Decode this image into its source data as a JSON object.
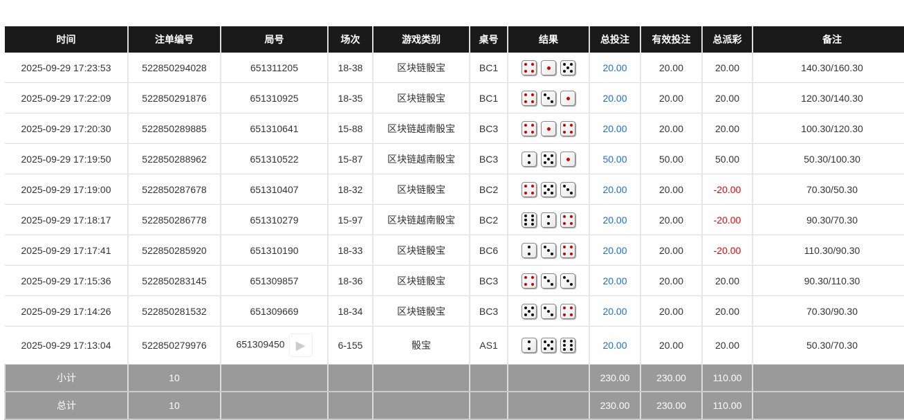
{
  "headers": [
    "时间",
    "注单编号",
    "局号",
    "场次",
    "游戏类别",
    "桌号",
    "结果",
    "总投注",
    "有效投注",
    "总派彩",
    "备注"
  ],
  "rows": [
    {
      "time": "2025-09-29 17:23:53",
      "bet_id": "522850294028",
      "round": "651311205",
      "session": "18-38",
      "game": "区块链骰宝",
      "table": "BC1",
      "dice": [
        4,
        1,
        5
      ],
      "total_bet": "20.00",
      "valid_bet": "20.00",
      "payout": "20.00",
      "note": "140.30/160.30"
    },
    {
      "time": "2025-09-29 17:22:09",
      "bet_id": "522850291876",
      "round": "651310925",
      "session": "18-35",
      "game": "区块链骰宝",
      "table": "BC1",
      "dice": [
        4,
        3,
        1
      ],
      "total_bet": "20.00",
      "valid_bet": "20.00",
      "payout": "20.00",
      "note": "120.30/140.30"
    },
    {
      "time": "2025-09-29 17:20:30",
      "bet_id": "522850289885",
      "round": "651310641",
      "session": "15-88",
      "game": "区块链越南骰宝",
      "table": "BC3",
      "dice": [
        4,
        1,
        4
      ],
      "total_bet": "20.00",
      "valid_bet": "20.00",
      "payout": "20.00",
      "note": "100.30/120.30"
    },
    {
      "time": "2025-09-29 17:19:50",
      "bet_id": "522850288962",
      "round": "651310522",
      "session": "15-87",
      "game": "区块链越南骰宝",
      "table": "BC3",
      "dice": [
        2,
        5,
        1
      ],
      "total_bet": "50.00",
      "valid_bet": "50.00",
      "payout": "50.00",
      "note": "50.30/100.30"
    },
    {
      "time": "2025-09-29 17:19:00",
      "bet_id": "522850287678",
      "round": "651310407",
      "session": "18-32",
      "game": "区块链骰宝",
      "table": "BC2",
      "dice": [
        4,
        5,
        3
      ],
      "total_bet": "20.00",
      "valid_bet": "20.00",
      "payout": "-20.00",
      "note": "70.30/50.30"
    },
    {
      "time": "2025-09-29 17:18:17",
      "bet_id": "522850286778",
      "round": "651310279",
      "session": "15-97",
      "game": "区块链越南骰宝",
      "table": "BC2",
      "dice": [
        6,
        2,
        4
      ],
      "total_bet": "20.00",
      "valid_bet": "20.00",
      "payout": "-20.00",
      "note": "90.30/70.30"
    },
    {
      "time": "2025-09-29 17:17:41",
      "bet_id": "522850285920",
      "round": "651310190",
      "session": "18-33",
      "game": "区块链骰宝",
      "table": "BC6",
      "dice": [
        2,
        3,
        4
      ],
      "total_bet": "20.00",
      "valid_bet": "20.00",
      "payout": "-20.00",
      "note": "110.30/90.30"
    },
    {
      "time": "2025-09-29 17:15:36",
      "bet_id": "522850283145",
      "round": "651309857",
      "session": "18-36",
      "game": "区块链骰宝",
      "table": "BC3",
      "dice": [
        4,
        3,
        3
      ],
      "total_bet": "20.00",
      "valid_bet": "20.00",
      "payout": "20.00",
      "note": "90.30/110.30"
    },
    {
      "time": "2025-09-29 17:14:26",
      "bet_id": "522850281532",
      "round": "651309669",
      "session": "18-34",
      "game": "区块链骰宝",
      "table": "BC3",
      "dice": [
        5,
        3,
        4
      ],
      "total_bet": "20.00",
      "valid_bet": "20.00",
      "payout": "20.00",
      "note": "70.30/90.30"
    },
    {
      "time": "2025-09-29 17:13:04",
      "bet_id": "522850279976",
      "round": "651309450",
      "session": "6-155",
      "game": "骰宝",
      "table": "AS1",
      "dice": [
        2,
        5,
        6
      ],
      "total_bet": "20.00",
      "valid_bet": "20.00",
      "payout": "20.00",
      "note": "50.30/70.30",
      "video_icon": "video-replay-icon"
    }
  ],
  "subtotal": {
    "label": "小计",
    "count": "10",
    "total_bet": "230.00",
    "valid_bet": "230.00",
    "payout": "110.00"
  },
  "total": {
    "label": "总计",
    "count": "10",
    "total_bet": "230.00",
    "valid_bet": "230.00",
    "payout": "110.00"
  },
  "colors": {
    "header": "#1a1a1a",
    "link": "#1a6fd6",
    "negative": "#e00000",
    "summary": "#9a9a9a"
  }
}
